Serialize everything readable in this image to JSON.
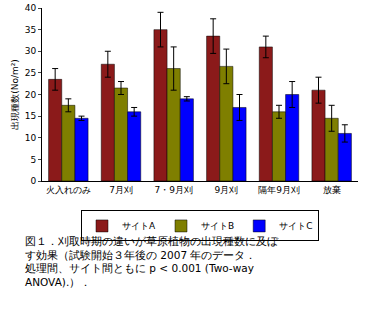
{
  "chart_data": {
    "type": "bar",
    "y_label": "出現種数(No/m²)",
    "categories": [
      "火入れのみ",
      "7月刈",
      "7・9月刈",
      "9月刈",
      "隔年9月刈",
      "放棄"
    ],
    "series": [
      {
        "name": "サイトA",
        "color": "#8B1A1A",
        "values": [
          23.5,
          27,
          35,
          33.5,
          31,
          21
        ],
        "errors": [
          2.5,
          3,
          4,
          4,
          2.5,
          3
        ]
      },
      {
        "name": "サイトB",
        "color": "#7F7F00",
        "values": [
          17.5,
          21.5,
          26,
          26.5,
          16,
          14.5
        ],
        "errors": [
          1.5,
          1.5,
          5,
          4,
          1.5,
          3
        ]
      },
      {
        "name": "サイトC",
        "color": "#0000FF",
        "values": [
          14.5,
          16,
          19,
          17,
          20,
          11
        ],
        "errors": [
          0.5,
          1,
          0.5,
          3,
          3,
          2
        ]
      }
    ],
    "ylim": [
      0,
      40
    ],
    "yticks": [
      0,
      5,
      10,
      15,
      20,
      25,
      30,
      35,
      40
    ],
    "grid": false,
    "legend": "bottom",
    "annotations": [
      "図１．刈取時期の違いが草原植物の出現種数に及ぼ",
      "す効果（試験開始３年後の 2007 年のデータ．",
      "処理間、サイト間ともに p < 0.001 (Two-way",
      "ANOVA).）．"
    ]
  }
}
